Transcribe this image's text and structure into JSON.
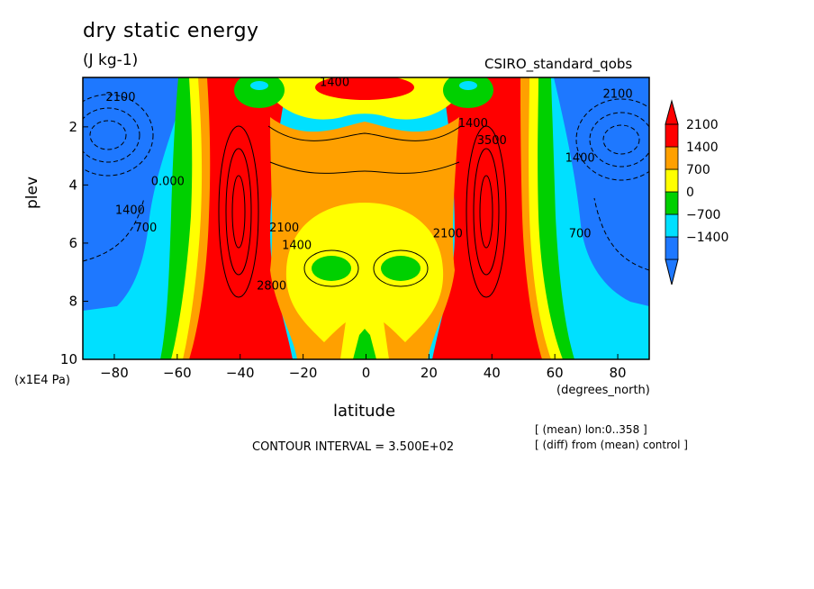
{
  "title": "dry static energy",
  "units": "(J kg-1)",
  "model_label": "CSIRO_standard_qobs",
  "notes": [
    "[ (mean) lon:0..358 ]",
    "[ (diff) from (mean) control ]"
  ],
  "contour_interval": "CONTOUR INTERVAL = 3.500E+02",
  "chart_data": {
    "type": "contour",
    "xlabel": "latitude",
    "x_unit": "(degrees_north)",
    "ylabel": "plev",
    "y_unit": "(x1E4 Pa)",
    "xlim": [
      -90,
      90
    ],
    "ylim": [
      10,
      0.3
    ],
    "x_ticks": [
      -80,
      -60,
      -40,
      -20,
      0,
      20,
      40,
      60,
      80
    ],
    "x_tick_labels": [
      "−80",
      "−60",
      "−40",
      "−20",
      "0",
      "20",
      "40",
      "60",
      "80"
    ],
    "y_ticks": [
      2,
      4,
      6,
      8,
      10
    ],
    "y_tick_labels": [
      "2",
      "4",
      "6",
      "8",
      "10"
    ],
    "contour_interval": 350,
    "legend": {
      "placement": "right",
      "colors": [
        "#1e78ff",
        "#00e0ff",
        "#00d000",
        "#ffff00",
        "#ffa000",
        "#ff0000"
      ],
      "below_color": "#1e78ff",
      "above_color": "#ff0000",
      "labels": [
        "2100",
        "1400",
        "700",
        "0",
        "−700",
        "−1400"
      ]
    },
    "regions": [
      {
        "band": "<-1400",
        "color": "#1e78ff",
        "lat": -78,
        "plev": 2.5
      },
      {
        "band": "<-1400",
        "color": "#1e78ff",
        "lat": 78,
        "plev": 2.5
      },
      {
        "band": "-1400..-700",
        "color": "#00e0ff",
        "lat": -80,
        "plev": 8.5
      },
      {
        "band": "-1400..-700",
        "color": "#00e0ff",
        "lat": 80,
        "plev": 8.5
      },
      {
        "band": "0..700",
        "color": "#00d000",
        "lat": -58,
        "plev": 5
      },
      {
        "band": "0..700",
        "color": "#00d000",
        "lat": 58,
        "plev": 5
      },
      {
        "band": "0..700",
        "color": "#00d000",
        "lat": -12,
        "plev": 7
      },
      {
        "band": "0..700",
        "color": "#00d000",
        "lat": 12,
        "plev": 7
      },
      {
        "band": "700..1400",
        "color": "#ffff00",
        "lat": 0,
        "plev": 6.5
      },
      {
        "band": "1400..2100",
        "color": "#ffa000",
        "lat": 0,
        "plev": 3.5
      },
      {
        "band": ">2100",
        "color": "#ff0000",
        "lat": -40,
        "plev": 5
      },
      {
        "band": ">2100",
        "color": "#ff0000",
        "lat": 40,
        "plev": 5
      },
      {
        "band": ">2100",
        "color": "#ff0000",
        "lat": 0,
        "plev": 0.6
      }
    ],
    "contour_labels": [
      {
        "text": "2100",
        "lat": -78,
        "plev": 1.1
      },
      {
        "text": "1400",
        "lat": -75,
        "plev": 5.0
      },
      {
        "text": "700",
        "lat": -70,
        "plev": 5.6
      },
      {
        "text": "0.000",
        "lat": -63,
        "plev": 4.0
      },
      {
        "text": "2100",
        "lat": -26,
        "plev": 5.6
      },
      {
        "text": "1400",
        "lat": -22,
        "plev": 6.2
      },
      {
        "text": "2800",
        "lat": -30,
        "plev": 7.6
      },
      {
        "text": "1400",
        "lat": -10,
        "plev": 0.6
      },
      {
        "text": "1400",
        "lat": 34,
        "plev": 2.0
      },
      {
        "text": "2100",
        "lat": 26,
        "plev": 5.8
      },
      {
        "text": "3500",
        "lat": 40,
        "plev": 2.6
      },
      {
        "text": "2100",
        "lat": 80,
        "plev": 1.0
      },
      {
        "text": "1400",
        "lat": 68,
        "plev": 3.2
      },
      {
        "text": "700",
        "lat": 68,
        "plev": 5.8
      }
    ]
  }
}
